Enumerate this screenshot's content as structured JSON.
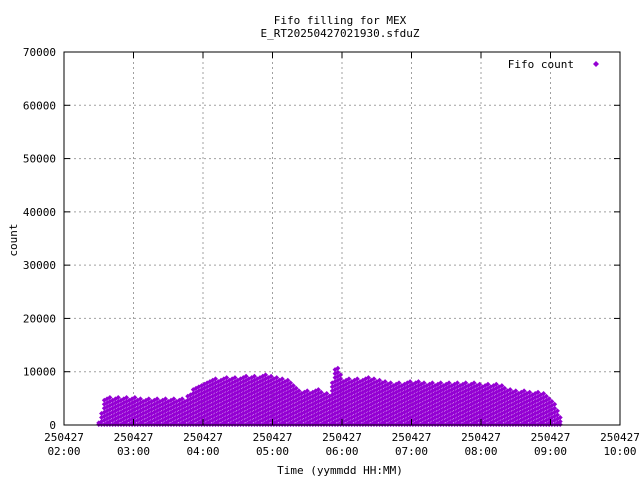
{
  "chart_data": {
    "type": "scatter",
    "title": "Fifo filling for MEX",
    "subtitle": "E_RT20250427021930.sfduZ",
    "xlabel": "Time (yymmdd HH:MM)",
    "ylabel": "count",
    "xlim": [
      "250427 02:00",
      "250427 10:00"
    ],
    "ylim": [
      0,
      70000
    ],
    "grid": true,
    "legend_position": "top-right",
    "x_ticks": [
      {
        "date": "250427",
        "time": "02:00"
      },
      {
        "date": "250427",
        "time": "03:00"
      },
      {
        "date": "250427",
        "time": "04:00"
      },
      {
        "date": "250427",
        "time": "05:00"
      },
      {
        "date": "250427",
        "time": "06:00"
      },
      {
        "date": "250427",
        "time": "07:00"
      },
      {
        "date": "250427",
        "time": "08:00"
      },
      {
        "date": "250427",
        "time": "09:00"
      },
      {
        "date": "250427",
        "time": "10:00"
      }
    ],
    "y_ticks": [
      "0",
      "10000",
      "20000",
      "30000",
      "40000",
      "50000",
      "60000",
      "70000"
    ],
    "series": [
      {
        "name": "Fifo count",
        "color": "#9400d3",
        "marker": "diamond",
        "level_step": 750,
        "data_start": "250427 02:30",
        "data_end": "250427 09:10",
        "max_count_profile": [
          {
            "t": "02:30",
            "max": 400
          },
          {
            "t": "02:35",
            "max": 5300
          },
          {
            "t": "02:55",
            "max": 5200
          },
          {
            "t": "03:20",
            "max": 5000
          },
          {
            "t": "03:45",
            "max": 5100
          },
          {
            "t": "03:50",
            "max": 6500
          },
          {
            "t": "04:00",
            "max": 7600
          },
          {
            "t": "04:05",
            "max": 8800
          },
          {
            "t": "04:40",
            "max": 9200
          },
          {
            "t": "04:55",
            "max": 9600
          },
          {
            "t": "05:15",
            "max": 8600
          },
          {
            "t": "05:25",
            "max": 6500
          },
          {
            "t": "05:40",
            "max": 6700
          },
          {
            "t": "05:50",
            "max": 6000
          },
          {
            "t": "05:55",
            "max": 12300
          },
          {
            "t": "06:00",
            "max": 8700
          },
          {
            "t": "06:25",
            "max": 9000
          },
          {
            "t": "06:40",
            "max": 8000
          },
          {
            "t": "07:00",
            "max": 8200
          },
          {
            "t": "07:45",
            "max": 8000
          },
          {
            "t": "08:15",
            "max": 7800
          },
          {
            "t": "08:25",
            "max": 6700
          },
          {
            "t": "08:55",
            "max": 6200
          },
          {
            "t": "09:05",
            "max": 4000
          },
          {
            "t": "09:10",
            "max": 400
          }
        ]
      }
    ]
  }
}
